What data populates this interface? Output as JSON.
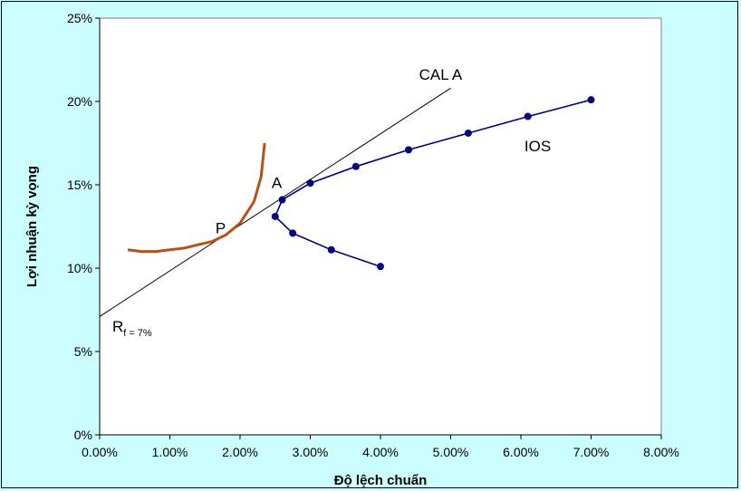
{
  "chart_data": {
    "type": "scatter",
    "xlabel": "Độ lệch chuẩn",
    "ylabel": "Lợi nhuận kỳ vọng",
    "xlim": [
      0,
      0.08
    ],
    "ylim": [
      0,
      0.25
    ],
    "x_ticks": [
      "0.00%",
      "1.00%",
      "2.00%",
      "3.00%",
      "4.00%",
      "5.00%",
      "6.00%",
      "7.00%",
      "8.00%"
    ],
    "y_ticks": [
      "0%",
      "5%",
      "10%",
      "15%",
      "20%",
      "25%"
    ],
    "grid": false,
    "series": [
      {
        "name": "IOS",
        "color": "#000080",
        "marker": "circle",
        "points": [
          [
            0.04,
            0.101
          ],
          [
            0.033,
            0.111
          ],
          [
            0.0275,
            0.121
          ],
          [
            0.025,
            0.131
          ],
          [
            0.026,
            0.141
          ],
          [
            0.03,
            0.151
          ],
          [
            0.0365,
            0.161
          ],
          [
            0.044,
            0.171
          ],
          [
            0.0525,
            0.181
          ],
          [
            0.061,
            0.191
          ],
          [
            0.07,
            0.201
          ]
        ]
      },
      {
        "name": "CAL A",
        "color": "#000000",
        "marker": "none",
        "points": [
          [
            0.0,
            0.071
          ],
          [
            0.05,
            0.208
          ]
        ]
      },
      {
        "name": "",
        "color": "#b5521b",
        "marker": "none",
        "points": [
          [
            0.004,
            0.111
          ],
          [
            0.006,
            0.11
          ],
          [
            0.008,
            0.11
          ],
          [
            0.01,
            0.111
          ],
          [
            0.012,
            0.112
          ],
          [
            0.014,
            0.114
          ],
          [
            0.016,
            0.116
          ],
          [
            0.018,
            0.12
          ],
          [
            0.02,
            0.127
          ],
          [
            0.022,
            0.14
          ],
          [
            0.023,
            0.155
          ],
          [
            0.0235,
            0.175
          ]
        ]
      }
    ],
    "annotations": [
      {
        "id": "cal",
        "text": "CAL A",
        "x": 0.0455,
        "y": 0.213
      },
      {
        "id": "ios",
        "text": "IOS",
        "x": 0.0605,
        "y": 0.17
      },
      {
        "id": "a",
        "text": "A",
        "x": 0.0245,
        "y": 0.148
      },
      {
        "id": "p",
        "text": "P",
        "x": 0.0165,
        "y": 0.121
      }
    ],
    "rf_label": {
      "main": "R",
      "sub": "f = 7%",
      "x": 0.0018,
      "y": 0.062
    }
  }
}
